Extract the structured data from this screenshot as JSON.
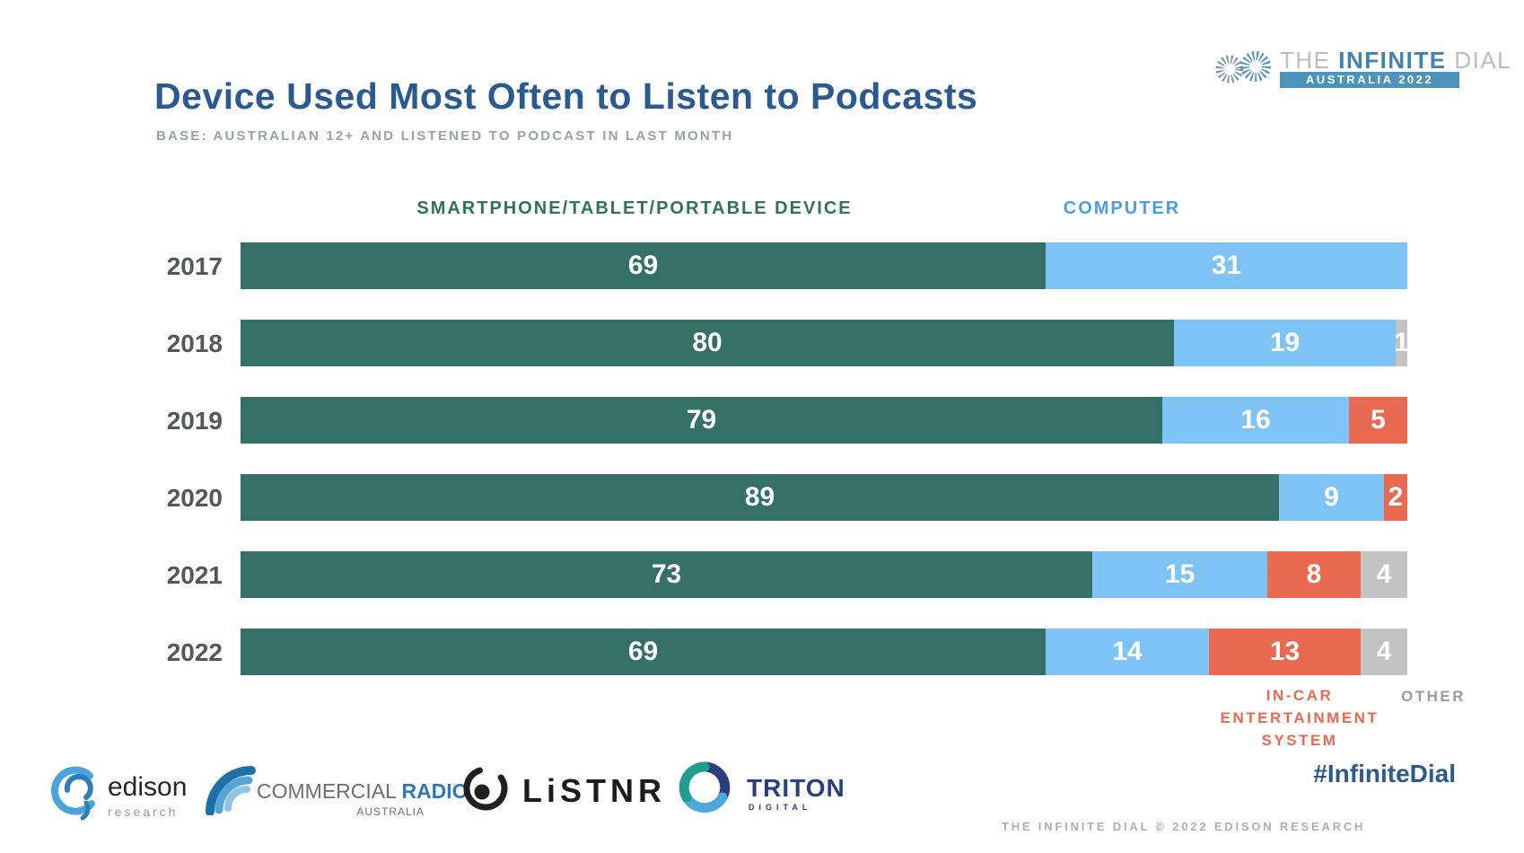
{
  "header": {
    "title": "Device Used Most Often to Listen to Podcasts",
    "subtitle": "BASE: AUSTRALIAN 12+ AND LISTENED TO PODCAST IN LAST MONTH",
    "logo": {
      "the": "THE",
      "infinite": "INFINITE",
      "dial": "DIAL",
      "banner": "AUSTRALIA 2022"
    }
  },
  "chart_data": {
    "type": "bar",
    "orientation": "horizontal",
    "stacked": true,
    "categories": [
      "2017",
      "2018",
      "2019",
      "2020",
      "2021",
      "2022"
    ],
    "series": [
      {
        "name": "SMARTPHONE/TABLET/PORTABLE DEVICE",
        "color": "#347065",
        "values": [
          69,
          80,
          79,
          89,
          73,
          69
        ]
      },
      {
        "name": "COMPUTER",
        "color": "#7EC3F5",
        "values": [
          31,
          19,
          16,
          9,
          15,
          14
        ]
      },
      {
        "name": "IN-CAR ENTERTAINMENT SYSTEM",
        "color": "#E96A51",
        "values": [
          0,
          0,
          5,
          2,
          8,
          13
        ]
      },
      {
        "name": "OTHER",
        "color": "#C3C3C3",
        "values": [
          0,
          1,
          0,
          0,
          4,
          4
        ]
      }
    ],
    "xlim": [
      0,
      100
    ],
    "value_labels": "inside-white",
    "grid": false,
    "legend_position": "labels-near-bars"
  },
  "labels": {
    "incar_lines": [
      "IN-CAR",
      "ENTERTAINMENT",
      "SYSTEM"
    ],
    "other": "OTHER"
  },
  "footer": {
    "edison": {
      "name": "edison",
      "sub": "research"
    },
    "commercial_radio": {
      "word1": "COMMERCIAL ",
      "word2": "RADIO",
      "sub": "AUSTRALIA"
    },
    "listnr": "LiSTNR",
    "triton": {
      "name": "TRITON",
      "sub": "DIGITAL"
    },
    "hashtag": "#InfiniteDial",
    "copyright": "THE INFINITE DIAL  © 2022 EDISON RESEARCH"
  },
  "colors": {
    "title_blue": "#2B5A93",
    "smartphone_green": "#347065",
    "computer_blue": "#7EC3F5",
    "incar_orange": "#E96A51",
    "other_gray": "#C3C3C3",
    "computer_label_blue": "#4C9EE4",
    "year_label_gray": "#55565A",
    "banner_blue": "#4E93BA"
  }
}
